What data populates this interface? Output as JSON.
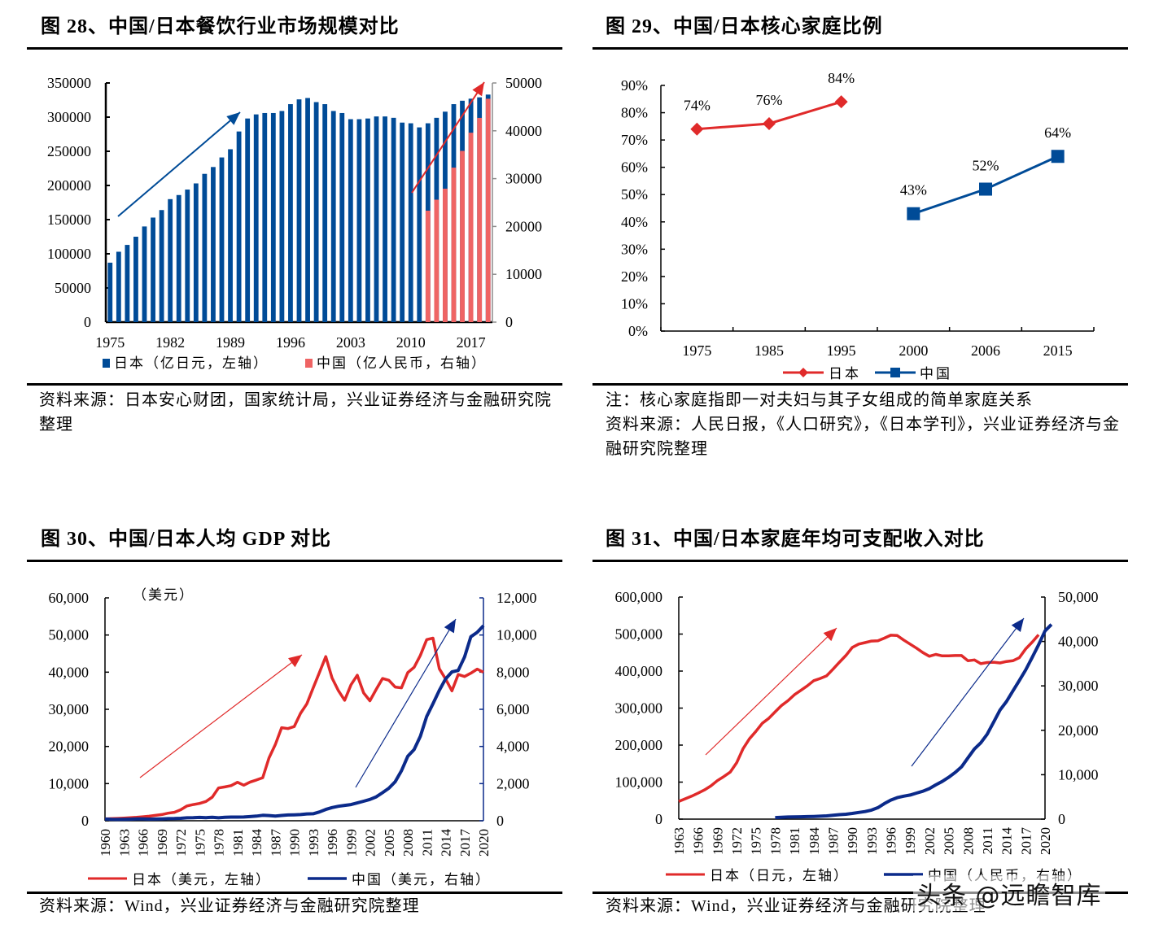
{
  "colors": {
    "blue": "#004b97",
    "red": "#ef6464",
    "red_line": "#e02a2a",
    "navy": "#0b2a8a",
    "axis": "#000000",
    "right_axis_gray": "#8c8c8c"
  },
  "fig28": {
    "title": "图 28、中国/日本餐饮行业市场规模对比",
    "source": "资料来源：日本安心财团，国家统计局，兴业证券经济与金融研究院整理"
  },
  "fig29": {
    "title": "图 29、中国/日本核心家庭比例",
    "note": "注：核心家庭指即一对夫妇与其子女组成的简单家庭关系",
    "source": "资料来源：人民日报，《人口研究》，《日本学刊》，兴业证券经济与金融研究院整理"
  },
  "fig30": {
    "title": "图 30、中国/日本人均 GDP 对比",
    "source": "资料来源：Wind，兴业证券经济与金融研究院整理"
  },
  "fig31": {
    "title": "图 31、中国/日本家庭年均可支配收入对比",
    "source": "资料来源：Wind，兴业证券经济与金融研究院整理"
  },
  "watermark": "头条 @远瞻智库",
  "chart_data": [
    {
      "type": "bar",
      "title": "中国/日本餐饮行业市场规模对比",
      "x": [
        1975,
        1976,
        1977,
        1978,
        1979,
        1980,
        1981,
        1982,
        1983,
        1984,
        1985,
        1986,
        1987,
        1988,
        1989,
        1990,
        1991,
        1992,
        1993,
        1994,
        1995,
        1996,
        1997,
        1998,
        1999,
        2000,
        2001,
        2002,
        2003,
        2004,
        2005,
        2006,
        2007,
        2008,
        2009,
        2010,
        2011,
        2012,
        2013,
        2014,
        2015,
        2016,
        2017,
        2018,
        2019
      ],
      "xticks": [
        "1975",
        "1982",
        "1989",
        "1996",
        "2003",
        "2010",
        "2017"
      ],
      "yticks_left": [
        "0",
        "50000",
        "100000",
        "150000",
        "200000",
        "250000",
        "300000",
        "350000"
      ],
      "yticks_right": [
        "0",
        "10000",
        "20000",
        "30000",
        "40000",
        "50000"
      ],
      "ylim_left": [
        0,
        350000
      ],
      "ylim_right": [
        0,
        50000
      ],
      "series": [
        {
          "name": "日本（亿日元，左轴）",
          "axis": "left",
          "values": [
            87000,
            103000,
            113000,
            125000,
            140000,
            153000,
            164000,
            180000,
            186000,
            194000,
            203000,
            217000,
            227000,
            241000,
            253000,
            279000,
            298000,
            304000,
            306000,
            306000,
            309000,
            319000,
            326000,
            328000,
            322000,
            319000,
            309000,
            306000,
            297000,
            297000,
            298000,
            301000,
            301000,
            299000,
            292000,
            291000,
            285000,
            291000,
            299000,
            308000,
            319000,
            324000,
            327000,
            329000,
            333000
          ]
        },
        {
          "name": "中国（亿人民币，右轴）",
          "axis": "right",
          "x": [
            2012,
            2013,
            2014,
            2015,
            2016,
            2017,
            2018,
            2019
          ],
          "values": [
            23300,
            25600,
            27900,
            32300,
            35800,
            39600,
            42700,
            46700
          ]
        }
      ],
      "legend": [
        "日本（亿日元，左轴）",
        "中国（亿人民币，右轴）"
      ],
      "legend_position": "bottom"
    },
    {
      "type": "line",
      "title": "中国/日本核心家庭比例",
      "categories": [
        "1975",
        "1985",
        "1995",
        "2000",
        "2006",
        "2015"
      ],
      "yticks": [
        "0%",
        "10%",
        "20%",
        "30%",
        "40%",
        "50%",
        "60%",
        "70%",
        "80%",
        "90%"
      ],
      "ylim": [
        0,
        90
      ],
      "series": [
        {
          "name": "日本",
          "values": [
            74,
            76,
            84,
            null,
            null,
            null
          ],
          "labels": [
            "74%",
            "76%",
            "84%"
          ]
        },
        {
          "name": "中国",
          "values": [
            null,
            null,
            null,
            43,
            52,
            64
          ],
          "labels": [
            "43%",
            "52%",
            "64%"
          ]
        }
      ],
      "legend": [
        "日本",
        "中国"
      ],
      "legend_position": "bottom"
    },
    {
      "type": "line",
      "title": "中国/日本人均 GDP 对比",
      "unit_label": "（美元）",
      "x_start": 1960,
      "x_end": 2020,
      "xticks": [
        "1960",
        "1963",
        "1966",
        "1969",
        "1972",
        "1975",
        "1978",
        "1981",
        "1984",
        "1987",
        "1990",
        "1993",
        "1996",
        "1999",
        "2002",
        "2005",
        "2008",
        "2011",
        "2014",
        "2017",
        "2020"
      ],
      "yticks_left": [
        "0",
        "10,000",
        "20,000",
        "30,000",
        "40,000",
        "50,000",
        "60,000"
      ],
      "yticks_right": [
        "0",
        "2,000",
        "4,000",
        "6,000",
        "8,000",
        "10,000",
        "12,000"
      ],
      "ylim_left": [
        0,
        60000
      ],
      "ylim_right": [
        0,
        12000
      ],
      "series": [
        {
          "name": "日本（美元，左轴）",
          "axis": "left",
          "values": [
            480,
            560,
            630,
            720,
            840,
            920,
            1070,
            1230,
            1450,
            1670,
            2040,
            2270,
            2950,
            3990,
            4350,
            4660,
            5200,
            6340,
            8820,
            9100,
            9460,
            10360,
            9580,
            10430,
            10980,
            11580,
            16880,
            20510,
            25050,
            24810,
            25360,
            28930,
            31470,
            35760,
            39930,
            44200,
            38440,
            35020,
            32420,
            36610,
            39170,
            34410,
            32290,
            35390,
            38300,
            37820,
            35990,
            35780,
            39880,
            41310,
            44510,
            48760,
            49170,
            40900,
            38160,
            34960,
            39380,
            38830,
            39730,
            40810,
            39990
          ]
        },
        {
          "name": "中国（美元，右轴）",
          "axis": "right",
          "values": [
            90,
            76,
            71,
            73,
            85,
            98,
            101,
            89,
            91,
            100,
            113,
            119,
            132,
            157,
            160,
            178,
            165,
            185,
            156,
            184,
            195,
            197,
            203,
            225,
            251,
            295,
            282,
            252,
            283,
            311,
            318,
            333,
            366,
            377,
            473,
            610,
            709,
            781,
            829,
            873,
            959,
            1053,
            1149,
            1289,
            1509,
            1753,
            2099,
            2694,
            3468,
            3832,
            4550,
            5618,
            6301,
            7020,
            7636,
            8016,
            8094,
            8817,
            9905,
            10144,
            10500
          ]
        }
      ],
      "legend": [
        "日本（美元，左轴）",
        "中国（美元，右轴）"
      ],
      "legend_position": "bottom"
    },
    {
      "type": "line",
      "title": "中国/日本家庭年均可支配收入对比",
      "x_start": 1963,
      "x_end": 2020,
      "xticks": [
        "1963",
        "1966",
        "1969",
        "1972",
        "1975",
        "1978",
        "1981",
        "1984",
        "1987",
        "1990",
        "1993",
        "1996",
        "1999",
        "2002",
        "2005",
        "2008",
        "2011",
        "2014",
        "2017",
        "2020"
      ],
      "yticks_left": [
        "0",
        "100,000",
        "200,000",
        "300,000",
        "400,000",
        "500,000",
        "600,000"
      ],
      "yticks_right": [
        "0",
        "10,000",
        "20,000",
        "30,000",
        "40,000",
        "50,000"
      ],
      "ylim_left": [
        0,
        600000
      ],
      "ylim_right": [
        0,
        50000
      ],
      "series": [
        {
          "name": "日本（日元，左轴）",
          "axis": "left",
          "x_start": 1963,
          "values": [
            48000,
            55000,
            62000,
            70000,
            79000,
            90000,
            104000,
            115000,
            127000,
            152000,
            190000,
            217000,
            237000,
            259000,
            272000,
            290000,
            307000,
            320000,
            336000,
            348000,
            360000,
            374000,
            380000,
            387000,
            405000,
            424000,
            442000,
            464000,
            473000,
            477000,
            481000,
            482000,
            489000,
            497000,
            496000,
            484000,
            473000,
            462000,
            450000,
            440000,
            445000,
            441000,
            441000,
            442000,
            442000,
            428000,
            430000,
            420000,
            423000,
            424000,
            422000,
            426000,
            428000,
            436000,
            460000,
            478000,
            498000
          ]
        },
        {
          "name": "中国（人民币，右轴）",
          "axis": "right",
          "x_start": 1978,
          "values": [
            343,
            405,
            478,
            500,
            535,
            565,
            608,
            652,
            739,
            854,
            1002,
            1090,
            1278,
            1510,
            1700,
            2027,
            2577,
            3496,
            4283,
            4839,
            5160,
            5425,
            5854,
            6280,
            6860,
            7703,
            8472,
            9422,
            10493,
            11759,
            13786,
            15781,
            17175,
            19109,
            21810,
            24565,
            26467,
            28844,
            31195,
            33616,
            36396,
            39251,
            42359,
            43834
          ]
        }
      ],
      "legend": [
        "日本（日元，左轴）",
        "中国（人民币，右轴）"
      ],
      "legend_position": "bottom"
    }
  ]
}
